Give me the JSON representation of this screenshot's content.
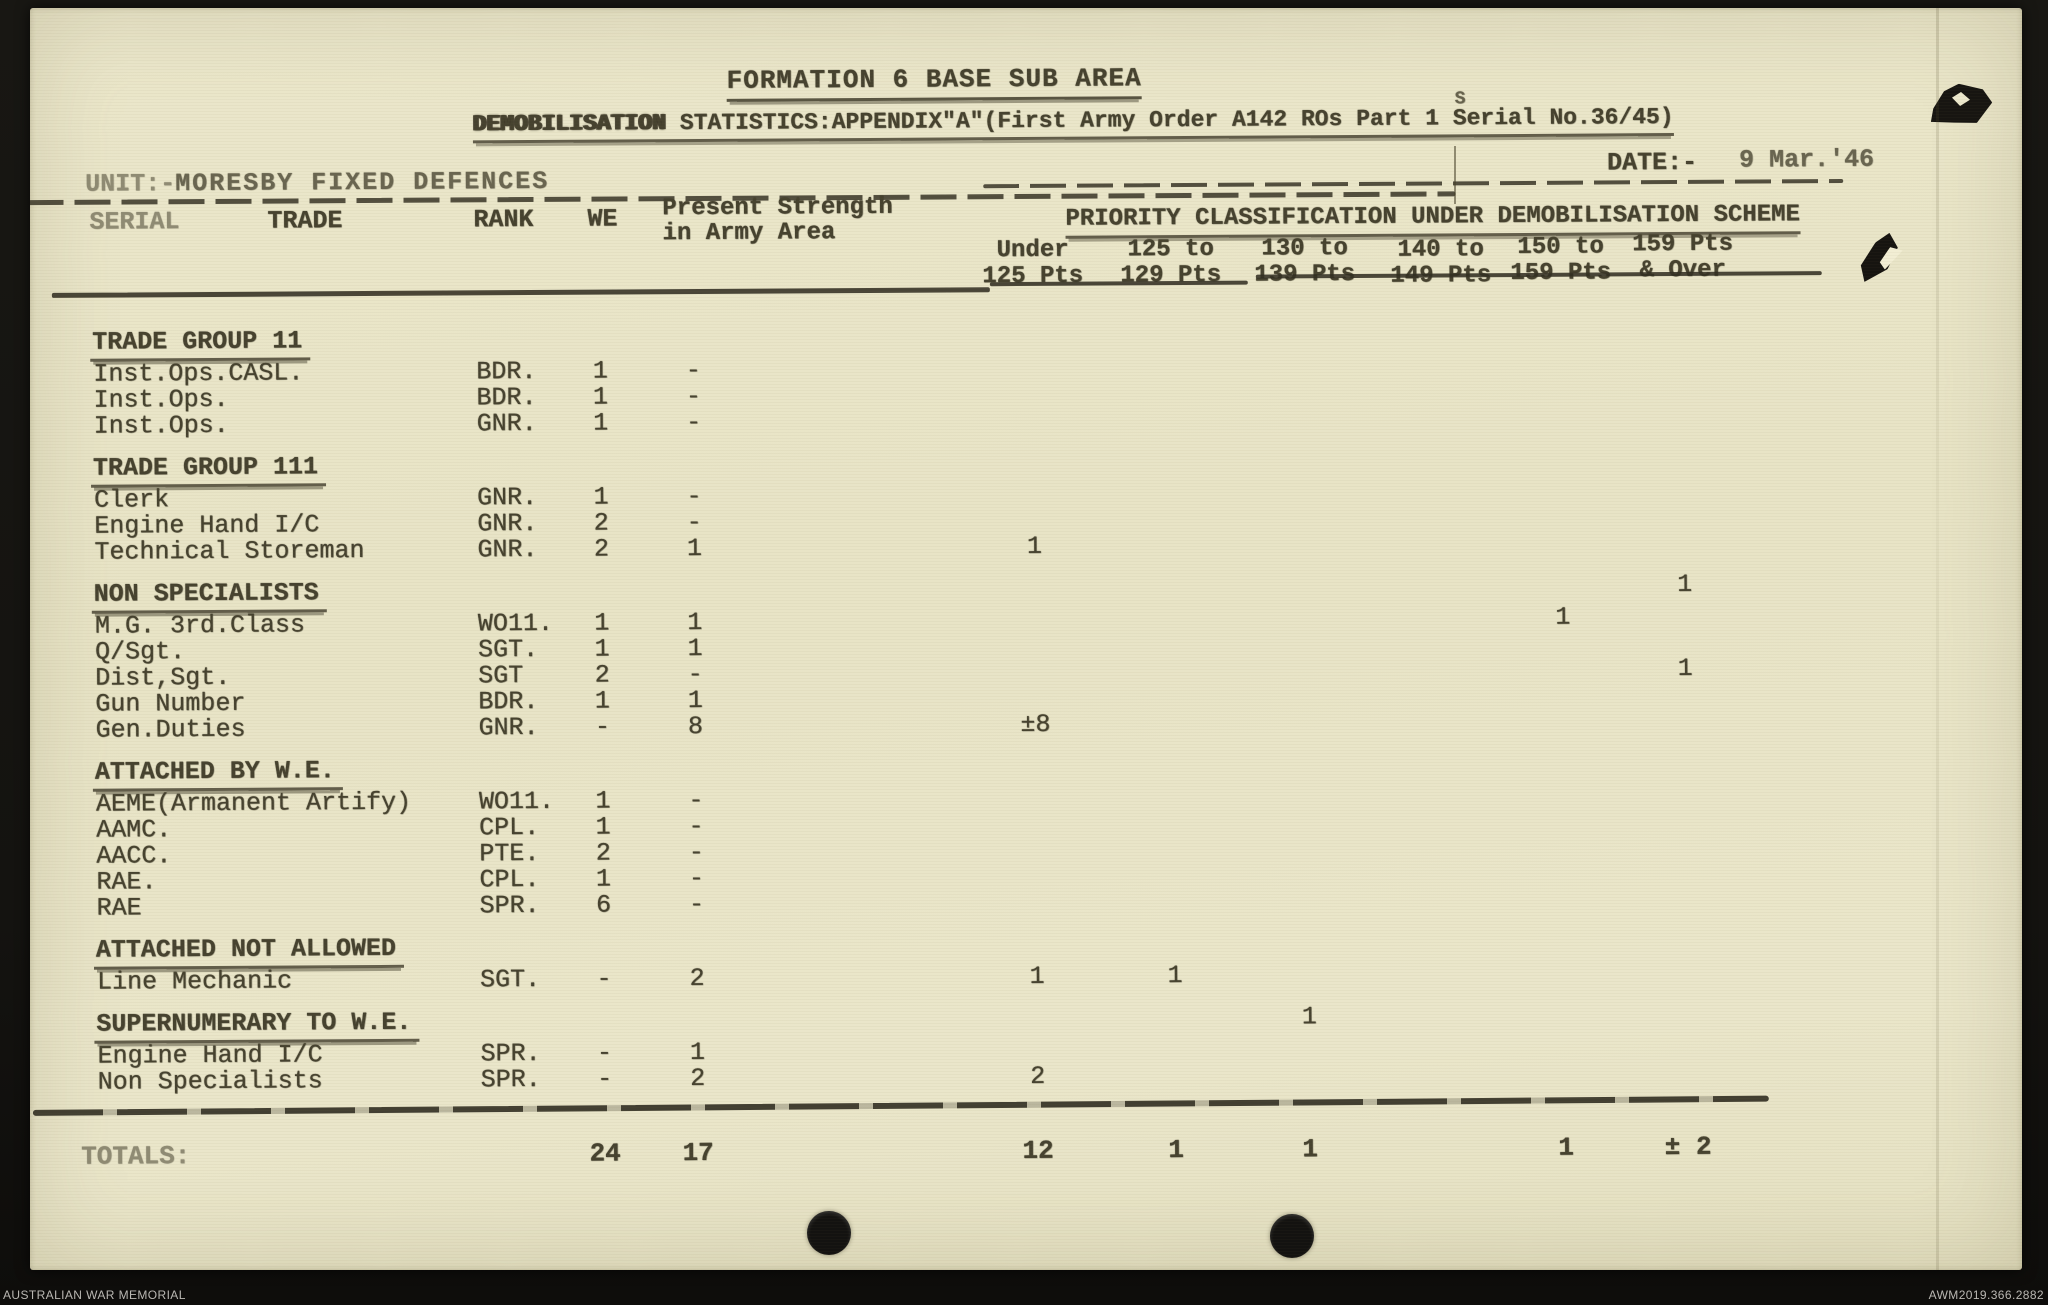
{
  "scan": {
    "archive_left": "AUSTRALIAN WAR MEMORIAL",
    "archive_right": "AWM2019.366.2882"
  },
  "doc": {
    "title": "FORMATION 6 BASE SUB AREA",
    "subtitle_word": "DEMOBILISATION",
    "subtitle_rest": " STATISTICS:APPENDIX\"A\"(First Army Order A142 ROs Part 1 Serial No.36/45)",
    "overtype_s": "S",
    "unit_label": "UNIT:-",
    "unit_value": "MORESBY FIXED DEFENCES",
    "date_label": "DATE:-",
    "date_value": "9 Mar.'46",
    "columns": {
      "serial": "SERIAL",
      "trade": "TRADE",
      "rank": "RANK",
      "we": "WE",
      "present_strength": [
        "Present Strength",
        "in Army Area"
      ],
      "priority_title": "PRIORITY CLASSIFICATION UNDER DEMOBILISATION SCHEME",
      "priority_cols": [
        [
          "Under",
          "125 Pts"
        ],
        [
          "125 to",
          "129 Pts"
        ],
        [
          "130 to",
          "139 Pts"
        ],
        [
          "140 to",
          "149 Pts"
        ],
        [
          "150 to",
          "159 Pts"
        ],
        [
          "159 Pts",
          "& Over"
        ]
      ]
    },
    "rows": [
      {
        "type": "section",
        "label": "TRADE GROUP 11",
        "p": [
          "",
          "",
          "",
          "",
          "",
          ""
        ]
      },
      {
        "type": "item",
        "trade": "Inst.Ops.CASL.",
        "rank": "BDR.",
        "we": "1",
        "ps": "-",
        "p": [
          "",
          "",
          "",
          "",
          "",
          ""
        ]
      },
      {
        "type": "item",
        "trade": "Inst.Ops.",
        "rank": "BDR.",
        "we": "1",
        "ps": "-",
        "p": [
          "",
          "",
          "",
          "",
          "",
          ""
        ]
      },
      {
        "type": "item",
        "trade": "Inst.Ops.",
        "rank": "GNR.",
        "we": "1",
        "ps": "-",
        "p": [
          "",
          "",
          "",
          "",
          "",
          ""
        ]
      },
      {
        "type": "section",
        "label": "TRADE GROUP 111",
        "p": [
          "",
          "",
          "",
          "",
          "",
          ""
        ]
      },
      {
        "type": "item",
        "trade": "Clerk",
        "rank": "GNR.",
        "we": "1",
        "ps": "-",
        "p": [
          "",
          "",
          "",
          "",
          "",
          ""
        ]
      },
      {
        "type": "item",
        "trade": "Engine Hand I/C",
        "rank": "GNR.",
        "we": "2",
        "ps": "-",
        "p": [
          "",
          "",
          "",
          "",
          "",
          ""
        ]
      },
      {
        "type": "item",
        "trade": "Technical Storeman",
        "rank": "GNR.",
        "we": "2",
        "ps": "1",
        "p": [
          "1",
          "",
          "",
          "",
          "",
          ""
        ]
      },
      {
        "type": "section",
        "label": "NON SPECIALISTS",
        "p": [
          "",
          "",
          "",
          "",
          "",
          "1"
        ]
      },
      {
        "type": "item",
        "trade": "M.G. 3rd.Class",
        "rank": "WO11.",
        "we": "1",
        "ps": "1",
        "p": [
          "",
          "",
          "",
          "",
          "1",
          ""
        ]
      },
      {
        "type": "item",
        "trade": "Q/Sgt.",
        "rank": "SGT.",
        "we": "1",
        "ps": "1",
        "p": [
          "",
          "",
          "",
          "",
          "",
          ""
        ]
      },
      {
        "type": "item",
        "trade": "Dist,Sgt.",
        "rank": "SGT",
        "we": "2",
        "ps": "-",
        "p": [
          "",
          "",
          "",
          "",
          "",
          "1"
        ]
      },
      {
        "type": "item",
        "trade": "Gun Number",
        "rank": "BDR.",
        "we": "1",
        "ps": "1",
        "p": [
          "",
          "",
          "",
          "",
          "",
          ""
        ]
      },
      {
        "type": "item",
        "trade": "Gen.Duties",
        "rank": "GNR.",
        "we": "-",
        "ps": "8",
        "p": [
          "±8",
          "",
          "",
          "",
          "",
          ""
        ]
      },
      {
        "type": "section",
        "label": "ATTACHED BY W.E.",
        "p": [
          "",
          "",
          "",
          "",
          "",
          ""
        ]
      },
      {
        "type": "item",
        "trade": "AEME(Armanent Artify)",
        "rank": "WO11.",
        "we": "1",
        "ps": "-",
        "p": [
          "",
          "",
          "",
          "",
          "",
          ""
        ]
      },
      {
        "type": "item",
        "trade": "AAMC.",
        "rank": "CPL.",
        "we": "1",
        "ps": "-",
        "p": [
          "",
          "",
          "",
          "",
          "",
          ""
        ]
      },
      {
        "type": "item",
        "trade": "AACC.",
        "rank": "PTE.",
        "we": "2",
        "ps": "-",
        "p": [
          "",
          "",
          "",
          "",
          "",
          ""
        ]
      },
      {
        "type": "item",
        "trade": "RAE.",
        "rank": "CPL.",
        "we": "1",
        "ps": "-",
        "p": [
          "",
          "",
          "",
          "",
          "",
          ""
        ]
      },
      {
        "type": "item",
        "trade": "RAE",
        "rank": "SPR.",
        "we": "6",
        "ps": "-",
        "p": [
          "",
          "",
          "",
          "",
          "",
          ""
        ]
      },
      {
        "type": "section",
        "label": "ATTACHED NOT ALLOWED",
        "p": [
          "",
          "",
          "",
          "",
          "",
          ""
        ]
      },
      {
        "type": "item",
        "trade": "Line Mechanic",
        "rank": "SGT.",
        "we": "-",
        "ps": "2",
        "p": [
          "1",
          "1",
          "",
          "",
          "",
          ""
        ]
      },
      {
        "type": "section",
        "label": "SUPERNUMERARY TO W.E.",
        "p": [
          "",
          "",
          "1",
          "",
          "",
          ""
        ]
      },
      {
        "type": "item",
        "trade": "Engine Hand I/C",
        "rank": "SPR.",
        "we": "-",
        "ps": "1",
        "p": [
          "",
          "",
          "",
          "",
          "",
          ""
        ]
      },
      {
        "type": "item",
        "trade": "Non Specialists",
        "rank": "SPR.",
        "we": "-",
        "ps": "2",
        "p": [
          "2",
          "",
          "",
          "",
          "",
          ""
        ]
      }
    ],
    "totals": {
      "label": "TOTALS:",
      "we": "24",
      "ps": "17",
      "p": [
        "12",
        "1",
        "1",
        "",
        "1",
        "± 2"
      ]
    }
  }
}
